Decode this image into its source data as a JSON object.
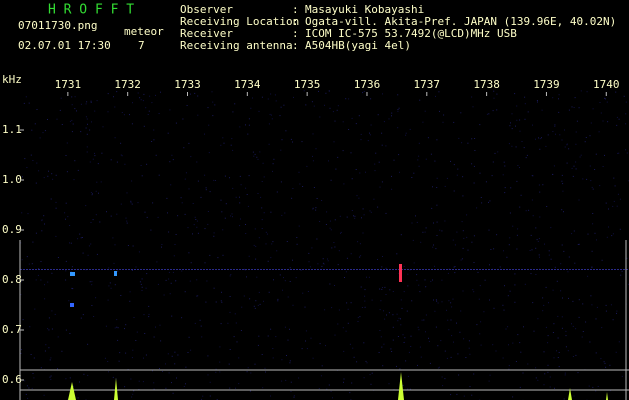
{
  "header": {
    "app": "H R O F F T",
    "file": "07011730.png",
    "datetime": "02.07.01 17:30",
    "meteor_label": "meteor",
    "meteor_count": "7",
    "info": [
      {
        "label": "Observer",
        "value": "Masayuki Kobayashi"
      },
      {
        "label": "Receiving Location",
        "value": "Ogata-vill. Akita-Pref. JAPAN (139.96E, 40.02N)"
      },
      {
        "label": "Receiver",
        "value": "ICOM IC-575 53.7492(@LCD)MHz USB"
      },
      {
        "label": "Receiving antenna",
        "value": "A504HB(yagi 4el)"
      }
    ],
    "separator": ":"
  },
  "chart_data": {
    "type": "spectrogram",
    "y_label": "kHz",
    "xlim": [
      1730.2,
      1740.38
    ],
    "xticks": [
      1731,
      1732,
      1733,
      1734,
      1735,
      1736,
      1737,
      1738,
      1739,
      1740
    ],
    "ylim": [
      0.56,
      1.18
    ],
    "yticks": [
      {
        "value": 0.6,
        "label": "0.6"
      },
      0.7,
      0.8,
      0.9,
      {
        "value": 1,
        "label": "1.0"
      },
      1.1
    ]
  }
}
